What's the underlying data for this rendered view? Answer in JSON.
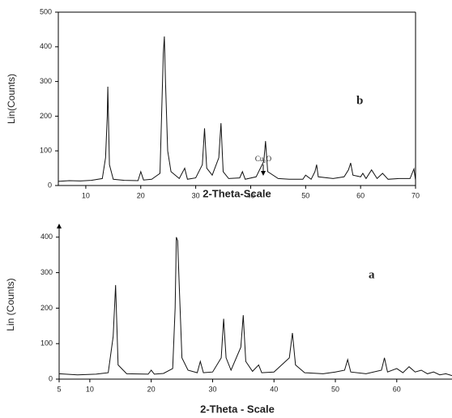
{
  "chart_data": [
    {
      "type": "line",
      "label": "b",
      "annotation": "Cu₂O",
      "x_label": "2-Theta-Scale",
      "y_label": "Lin(Counts)",
      "xlim": [
        5,
        70
      ],
      "xticks": [
        10,
        20,
        30,
        40,
        50,
        60,
        70
      ],
      "ylim": [
        0,
        500
      ],
      "yticks": [
        0,
        100,
        200,
        300,
        400,
        500
      ],
      "color": "#111111",
      "x": [
        5,
        7,
        9,
        11,
        13,
        13.6,
        13.9,
        14,
        14.3,
        15,
        17,
        19.5,
        20,
        20.5,
        22,
        23.5,
        24.1,
        24.3,
        24.5,
        24.9,
        25.5,
        27,
        28,
        28.5,
        30,
        31.2,
        31.6,
        32,
        33,
        34.2,
        34.6,
        35,
        36,
        38,
        38.5,
        39,
        41,
        42.4,
        42.7,
        43.1,
        45,
        47,
        49.5,
        50,
        51,
        51.7,
        52,
        52.3,
        55,
        57,
        57.8,
        58.2,
        58.6,
        60,
        60.4,
        61,
        62,
        63,
        64,
        65,
        67,
        69,
        69.7,
        70
      ],
      "values": [
        12,
        14,
        13,
        15,
        20,
        80,
        200,
        285,
        60,
        18,
        15,
        14,
        40,
        16,
        18,
        35,
        380,
        430,
        300,
        100,
        40,
        20,
        50,
        18,
        22,
        60,
        165,
        50,
        30,
        80,
        180,
        40,
        20,
        22,
        40,
        18,
        25,
        70,
        128,
        40,
        20,
        18,
        18,
        30,
        18,
        40,
        60,
        25,
        20,
        25,
        45,
        65,
        30,
        25,
        35,
        20,
        45,
        20,
        35,
        18,
        20,
        20,
        48,
        15
      ]
    },
    {
      "type": "line",
      "label": "a",
      "x_label": "2-Theta - Scale",
      "y_label": "Lin (Counts)",
      "xlim": [
        5,
        69
      ],
      "xticks": [
        5,
        10,
        20,
        30,
        40,
        50,
        60
      ],
      "ylim": [
        0,
        420
      ],
      "yticks": [
        0,
        100,
        200,
        300,
        400
      ],
      "color": "#111111",
      "x": [
        5,
        8,
        11,
        13,
        13.8,
        14.2,
        14.6,
        16,
        19.5,
        20,
        20.5,
        22,
        23.5,
        23.9,
        24.1,
        24.3,
        24.6,
        25,
        26,
        27.5,
        28,
        28.5,
        30,
        31.4,
        31.8,
        32.2,
        33,
        34.6,
        35,
        35.4,
        36.5,
        37.5,
        38,
        40,
        42.5,
        43,
        43.5,
        45,
        48,
        50,
        51.5,
        52,
        52.5,
        55,
        57.5,
        58,
        58.5,
        60,
        61,
        62,
        63,
        64,
        65,
        66,
        67,
        68,
        69
      ],
      "values": [
        15,
        12,
        14,
        18,
        120,
        265,
        40,
        15,
        14,
        25,
        14,
        16,
        30,
        200,
        400,
        390,
        250,
        60,
        25,
        18,
        50,
        18,
        20,
        60,
        170,
        60,
        25,
        90,
        180,
        50,
        22,
        40,
        18,
        20,
        60,
        130,
        40,
        18,
        15,
        20,
        25,
        55,
        20,
        15,
        25,
        60,
        20,
        30,
        18,
        35,
        20,
        25,
        15,
        20,
        12,
        15,
        10
      ]
    }
  ]
}
